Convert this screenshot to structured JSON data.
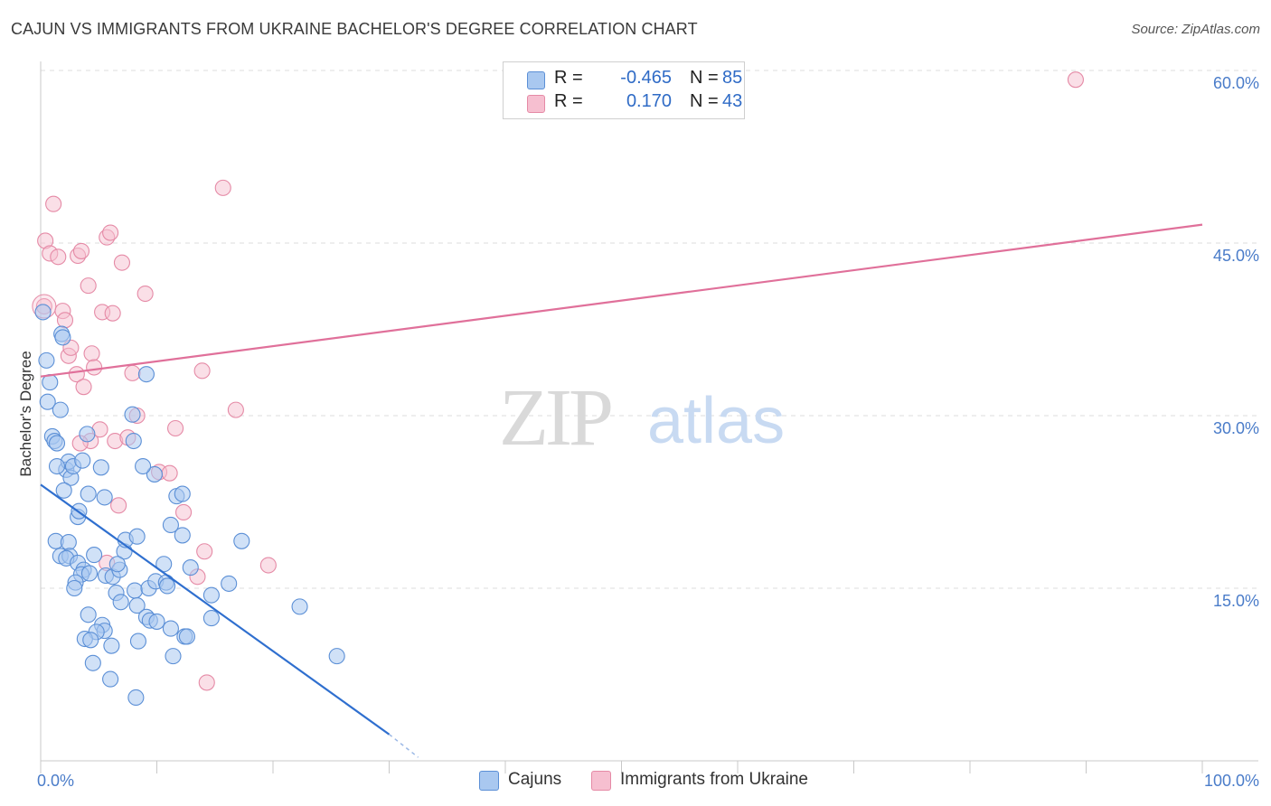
{
  "header": {
    "title": "CAJUN VS IMMIGRANTS FROM UKRAINE BACHELOR'S DEGREE CORRELATION CHART",
    "source": "Source: ZipAtlas.com"
  },
  "watermark": {
    "zip": "ZIP",
    "atlas": "atlas"
  },
  "colors": {
    "blue_fill": "#a9c8f0",
    "blue_stroke": "#5b8fd6",
    "blue_line": "#2f6fcf",
    "pink_fill": "#f6bfd0",
    "pink_stroke": "#e58aa6",
    "pink_line": "#e0709a",
    "tick_text": "#4a7cc9",
    "grid": "#dddddd"
  },
  "legend": {
    "rows": [
      {
        "r_label": "R =",
        "r_value": "-0.465",
        "n_label": "N =",
        "n_value": "85"
      },
      {
        "r_label": "R =",
        "r_value": "0.170",
        "n_label": "N =",
        "n_value": "43"
      }
    ]
  },
  "bottom_legend": [
    "Cajuns",
    "Immigrants from Ukraine"
  ],
  "chart_data": {
    "type": "scatter",
    "title": "CAJUN VS IMMIGRANTS FROM UKRAINE BACHELOR'S DEGREE CORRELATION CHART",
    "xlabel": "",
    "ylabel": "Bachelor's Degree",
    "xlim": [
      0,
      100
    ],
    "ylim": [
      0,
      60
    ],
    "x_tick_labels": [
      "0.0%",
      "100.0%"
    ],
    "y_ticks": [
      15,
      30,
      45,
      60
    ],
    "y_tick_labels": [
      "15.0%",
      "30.0%",
      "45.0%",
      "60.0%"
    ],
    "grid": true,
    "series": [
      {
        "name": "Cajuns",
        "r": -0.465,
        "n": 85,
        "trend": {
          "x": [
            0,
            30
          ],
          "y": [
            24.0,
            2.3
          ],
          "dashed_to": {
            "x": 32.5,
            "y": 0.3
          }
        },
        "points": [
          [
            0.2,
            39.0
          ],
          [
            0.5,
            34.8
          ],
          [
            0.8,
            32.9
          ],
          [
            0.6,
            31.2
          ],
          [
            1.0,
            28.2
          ],
          [
            1.2,
            27.8
          ],
          [
            1.4,
            27.6
          ],
          [
            1.7,
            30.5
          ],
          [
            1.8,
            37.1
          ],
          [
            1.9,
            36.8
          ],
          [
            2.2,
            25.3
          ],
          [
            2.4,
            26.0
          ],
          [
            2.6,
            24.6
          ],
          [
            2.8,
            25.6
          ],
          [
            3.6,
            26.1
          ],
          [
            5.2,
            25.5
          ],
          [
            1.4,
            25.6
          ],
          [
            2.0,
            23.5
          ],
          [
            4.1,
            23.2
          ],
          [
            5.5,
            22.9
          ],
          [
            3.2,
            21.2
          ],
          [
            3.3,
            21.7
          ],
          [
            1.3,
            19.1
          ],
          [
            2.4,
            19.0
          ],
          [
            1.7,
            17.8
          ],
          [
            2.5,
            17.8
          ],
          [
            2.2,
            17.6
          ],
          [
            3.2,
            17.2
          ],
          [
            4.6,
            17.9
          ],
          [
            3.7,
            16.6
          ],
          [
            3.5,
            16.2
          ],
          [
            4.2,
            16.3
          ],
          [
            5.6,
            16.1
          ],
          [
            6.2,
            16.0
          ],
          [
            3.0,
            15.5
          ],
          [
            2.9,
            15.0
          ],
          [
            6.8,
            16.6
          ],
          [
            7.2,
            18.2
          ],
          [
            7.3,
            19.2
          ],
          [
            8.3,
            19.5
          ],
          [
            6.6,
            17.1
          ],
          [
            6.5,
            14.6
          ],
          [
            8.1,
            14.8
          ],
          [
            8.3,
            13.5
          ],
          [
            6.9,
            13.8
          ],
          [
            9.3,
            15.0
          ],
          [
            9.9,
            15.6
          ],
          [
            10.6,
            17.1
          ],
          [
            10.8,
            15.5
          ],
          [
            10.9,
            15.2
          ],
          [
            11.2,
            20.5
          ],
          [
            12.2,
            19.6
          ],
          [
            11.7,
            23.0
          ],
          [
            12.2,
            23.2
          ],
          [
            9.8,
            24.9
          ],
          [
            8.8,
            25.6
          ],
          [
            8.0,
            27.8
          ],
          [
            7.9,
            30.1
          ],
          [
            9.1,
            33.6
          ],
          [
            4.0,
            28.4
          ],
          [
            12.9,
            16.8
          ],
          [
            14.7,
            14.4
          ],
          [
            14.7,
            12.4
          ],
          [
            16.2,
            15.4
          ],
          [
            17.3,
            19.1
          ],
          [
            22.3,
            13.4
          ],
          [
            25.5,
            9.1
          ],
          [
            4.1,
            12.7
          ],
          [
            5.3,
            11.8
          ],
          [
            5.5,
            11.3
          ],
          [
            4.8,
            11.2
          ],
          [
            3.8,
            10.6
          ],
          [
            4.3,
            10.5
          ],
          [
            6.1,
            10.0
          ],
          [
            8.4,
            10.4
          ],
          [
            9.1,
            12.5
          ],
          [
            9.4,
            12.2
          ],
          [
            10.0,
            12.1
          ],
          [
            11.2,
            11.5
          ],
          [
            12.4,
            10.8
          ],
          [
            12.6,
            10.8
          ],
          [
            11.4,
            9.1
          ],
          [
            4.5,
            8.5
          ],
          [
            6.0,
            7.1
          ],
          [
            8.2,
            5.5
          ]
        ]
      },
      {
        "name": "Immigrants from Ukraine",
        "r": 0.17,
        "n": 43,
        "trend": {
          "x": [
            0,
            100
          ],
          "y": [
            33.4,
            46.6
          ]
        },
        "points": [
          [
            0.3,
            39.5
          ],
          [
            0.4,
            45.2
          ],
          [
            0.8,
            44.1
          ],
          [
            1.1,
            48.4
          ],
          [
            1.5,
            43.8
          ],
          [
            1.9,
            39.1
          ],
          [
            2.1,
            38.3
          ],
          [
            2.4,
            35.2
          ],
          [
            2.6,
            35.9
          ],
          [
            3.1,
            33.6
          ],
          [
            3.2,
            43.9
          ],
          [
            3.5,
            44.3
          ],
          [
            3.7,
            32.5
          ],
          [
            4.1,
            41.3
          ],
          [
            4.3,
            27.8
          ],
          [
            3.4,
            27.6
          ],
          [
            4.4,
            35.4
          ],
          [
            4.6,
            34.2
          ],
          [
            5.1,
            28.8
          ],
          [
            5.3,
            39.0
          ],
          [
            5.7,
            45.5
          ],
          [
            6.0,
            45.9
          ],
          [
            6.2,
            38.9
          ],
          [
            6.4,
            27.8
          ],
          [
            6.7,
            22.2
          ],
          [
            7.0,
            43.3
          ],
          [
            7.5,
            28.1
          ],
          [
            7.9,
            33.7
          ],
          [
            8.3,
            30.0
          ],
          [
            9.0,
            40.6
          ],
          [
            10.2,
            25.1
          ],
          [
            11.1,
            25.0
          ],
          [
            11.6,
            28.9
          ],
          [
            12.3,
            21.6
          ],
          [
            13.5,
            16.0
          ],
          [
            13.9,
            33.9
          ],
          [
            14.1,
            18.2
          ],
          [
            14.3,
            6.8
          ],
          [
            15.7,
            49.8
          ],
          [
            16.8,
            30.5
          ],
          [
            19.6,
            17.0
          ],
          [
            5.7,
            17.2
          ],
          [
            89.1,
            59.2
          ]
        ]
      }
    ]
  }
}
